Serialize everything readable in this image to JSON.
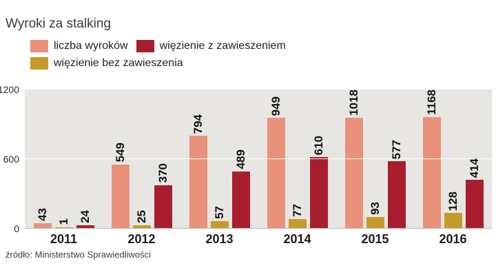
{
  "title": "Wyroki za stalking",
  "source": "źródło: Ministerstwo Sprawiedliwości",
  "legend": [
    {
      "label": "liczba wyroków",
      "color": "#e9917b"
    },
    {
      "label": "więzienie z zawieszeniem",
      "color": "#a81e2e"
    },
    {
      "label": "więzienie bez zawieszenia",
      "color": "#c49b2a"
    }
  ],
  "chart_data": {
    "type": "bar",
    "title": "Wyroki za stalking",
    "categories": [
      "2011",
      "2012",
      "2013",
      "2014",
      "2015",
      "2016"
    ],
    "series": [
      {
        "name": "liczba wyroków",
        "color": "#e9917b",
        "values": [
          43,
          549,
          794,
          949,
          1018,
          1168
        ]
      },
      {
        "name": "więzienie bez zawieszenia",
        "color": "#c49b2a",
        "values": [
          1,
          25,
          57,
          77,
          93,
          128
        ]
      },
      {
        "name": "więzienie z zawieszeniem",
        "color": "#a81e2e",
        "values": [
          24,
          370,
          489,
          610,
          577,
          414
        ]
      }
    ],
    "xlabel": "",
    "ylabel": "",
    "ylim": [
      0,
      1200
    ],
    "yticks": [
      0,
      600,
      1200
    ],
    "grid": true,
    "legend_position": "top",
    "plot_background": "#e8e6e2",
    "value_labels": "rotated-90"
  }
}
